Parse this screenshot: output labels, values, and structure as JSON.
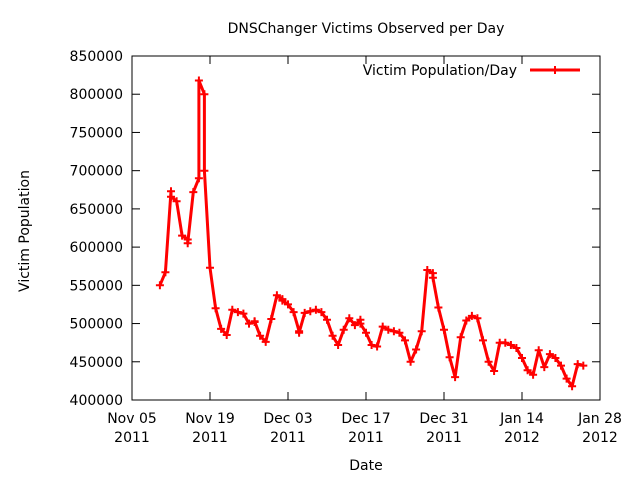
{
  "chart_data": {
    "type": "line",
    "title": "DNSChanger Victims Observed per Day",
    "xlabel": "Date",
    "ylabel": "Victim Population",
    "ylim": [
      400000,
      850000
    ],
    "yticks": [
      400000,
      450000,
      500000,
      550000,
      600000,
      650000,
      700000,
      750000,
      800000,
      850000
    ],
    "ytick_labels": [
      "400000",
      "450000",
      "500000",
      "550000",
      "600000",
      "650000",
      "700000",
      "750000",
      "800000",
      "850000"
    ],
    "xlim": [
      "2011-11-05",
      "2012-01-28"
    ],
    "xticks": [
      {
        "date": "2011-11-05",
        "line1": "Nov 05",
        "line2": "2011"
      },
      {
        "date": "2011-11-19",
        "line1": "Nov 19",
        "line2": "2011"
      },
      {
        "date": "2011-12-03",
        "line1": "Dec 03",
        "line2": "2011"
      },
      {
        "date": "2011-12-17",
        "line1": "Dec 17",
        "line2": "2011"
      },
      {
        "date": "2011-12-31",
        "line1": "Dec 31",
        "line2": "2011"
      },
      {
        "date": "2012-01-14",
        "line1": "Jan 14",
        "line2": "2012"
      },
      {
        "date": "2012-01-28",
        "line1": "Jan 28",
        "line2": "2012"
      }
    ],
    "grid": false,
    "legend": "top-right",
    "series": [
      {
        "name": "Victim Population/Day",
        "color": "#ff0000",
        "x": [
          "2011-11-10",
          "2011-11-11",
          "2011-11-12",
          "2011-11-12",
          "2011-11-13",
          "2011-11-14",
          "2011-11-15",
          "2011-11-15",
          "2011-11-16",
          "2011-11-17",
          "2011-11-17",
          "2011-11-18",
          "2011-11-18",
          "2011-11-19",
          "2011-11-20",
          "2011-11-21",
          "2011-11-22",
          "2011-11-23",
          "2011-11-24",
          "2011-11-25",
          "2011-11-26",
          "2011-11-27",
          "2011-11-27",
          "2011-11-28",
          "2011-11-29",
          "2011-11-30",
          "2011-12-01",
          "2011-12-02",
          "2011-12-02",
          "2011-12-03",
          "2011-12-04",
          "2011-12-05",
          "2011-12-05",
          "2011-12-06",
          "2011-12-07",
          "2011-12-08",
          "2011-12-09",
          "2011-12-10",
          "2011-12-11",
          "2011-12-12",
          "2011-12-13",
          "2011-12-14",
          "2011-12-15",
          "2011-12-16",
          "2011-12-16",
          "2011-12-17",
          "2011-12-18",
          "2011-12-19",
          "2011-12-20",
          "2011-12-21",
          "2011-12-22",
          "2011-12-23",
          "2011-12-24",
          "2011-12-25",
          "2011-12-26",
          "2011-12-27",
          "2011-12-28",
          "2011-12-29",
          "2011-12-29",
          "2011-12-30",
          "2011-12-31",
          "2012-01-01",
          "2012-01-02",
          "2012-01-03",
          "2012-01-04",
          "2012-01-05",
          "2012-01-06",
          "2012-01-07",
          "2012-01-08",
          "2012-01-09",
          "2012-01-10",
          "2012-01-11",
          "2012-01-12",
          "2012-01-13",
          "2012-01-14",
          "2012-01-15",
          "2012-01-16",
          "2012-01-17",
          "2012-01-18",
          "2012-01-19",
          "2012-01-20",
          "2012-01-21",
          "2012-01-22",
          "2012-01-23",
          "2012-01-24",
          "2012-01-25"
        ],
        "y": [
          550000,
          567000,
          673000,
          666000,
          660000,
          615000,
          610000,
          605000,
          672000,
          690000,
          818000,
          800000,
          700000,
          573000,
          520000,
          493000,
          485000,
          518000,
          515000,
          513000,
          500000,
          502000,
          503000,
          484000,
          476000,
          506000,
          537000,
          532000,
          530000,
          525000,
          515000,
          490000,
          488000,
          514000,
          516000,
          518000,
          515000,
          505000,
          484000,
          472000,
          492000,
          507000,
          498000,
          505000,
          500000,
          488000,
          472000,
          470000,
          496000,
          492000,
          490000,
          488000,
          478000,
          450000,
          466000,
          490000,
          570000,
          566000,
          560000,
          521000,
          492000,
          456000,
          430000,
          482000,
          504000,
          510000,
          507000,
          478000,
          450000,
          438000,
          475000,
          475000,
          472000,
          468000,
          455000,
          439000,
          433000,
          465000,
          443000,
          460000,
          455000,
          445000,
          428000,
          418000,
          447000,
          445000
        ]
      }
    ]
  }
}
